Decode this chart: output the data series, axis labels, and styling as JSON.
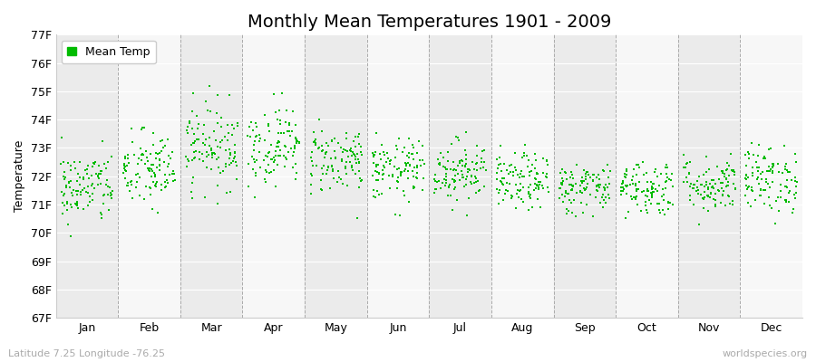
{
  "title": "Monthly Mean Temperatures 1901 - 2009",
  "ylabel": "Temperature",
  "xlabel_bottom_left": "Latitude 7.25 Longitude -76.25",
  "xlabel_bottom_right": "worldspecies.org",
  "legend_label": "Mean Temp",
  "ylim": [
    67,
    77
  ],
  "yticks": [
    67,
    68,
    69,
    70,
    71,
    72,
    73,
    74,
    75,
    76,
    77
  ],
  "ytick_labels": [
    "67F",
    "68F",
    "69F",
    "70F",
    "71F",
    "72F",
    "73F",
    "74F",
    "75F",
    "76F",
    "77F"
  ],
  "months": [
    "Jan",
    "Feb",
    "Mar",
    "Apr",
    "May",
    "Jun",
    "Jul",
    "Aug",
    "Sep",
    "Oct",
    "Nov",
    "Dec"
  ],
  "n_years": 109,
  "dot_color": "#00bb00",
  "dot_size": 3,
  "bg_color_even": "#ebebeb",
  "bg_color_odd": "#f7f7f7",
  "title_fontsize": 14,
  "axis_label_fontsize": 9,
  "tick_label_fontsize": 9,
  "legend_fontsize": 9,
  "seed": 42,
  "mean_temps_by_month": [
    71.6,
    72.2,
    73.1,
    73.1,
    72.6,
    72.2,
    72.2,
    71.8,
    71.6,
    71.6,
    71.7,
    71.9
  ],
  "std_temps_by_month": [
    0.65,
    0.7,
    0.75,
    0.7,
    0.6,
    0.55,
    0.55,
    0.5,
    0.45,
    0.5,
    0.5,
    0.6
  ]
}
